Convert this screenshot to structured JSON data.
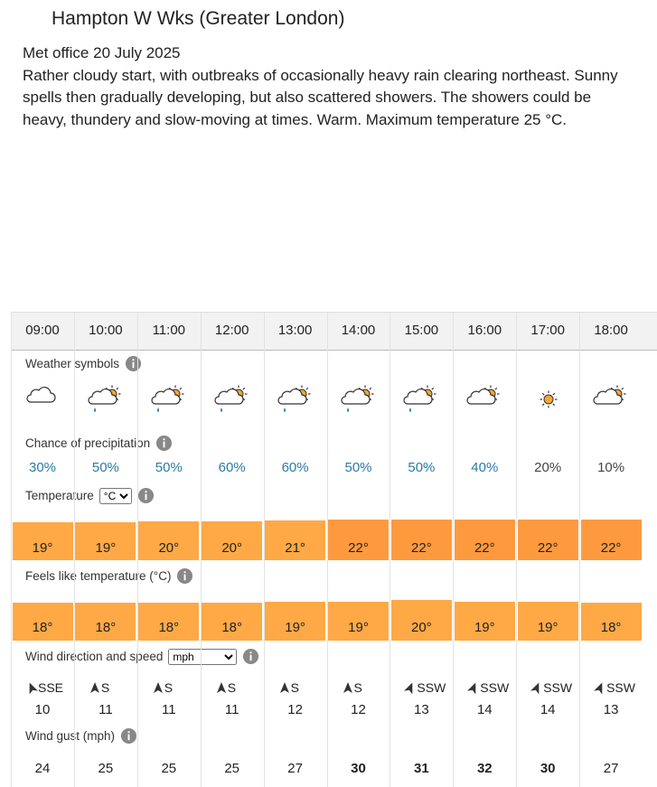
{
  "header": {
    "title": "Hampton W Wks (Greater London)"
  },
  "summary": {
    "source": "Met office 20 July 2025",
    "text": "Rather cloudy start, with outbreaks of occasionally heavy rain clearing northeast. Sunny spells then gradually developing, but also scattered showers. The showers could be heavy, thundery and slow-moving at times. Warm. Maximum temperature 25 °C."
  },
  "table": {
    "times": [
      "09:00",
      "10:00",
      "11:00",
      "12:00",
      "13:00",
      "14:00",
      "15:00",
      "16:00",
      "17:00",
      "18:00"
    ],
    "symbols_label": "Weather symbols",
    "precip_label": "Chance of precipitation",
    "precip": [
      {
        "value": 30,
        "label": "30%"
      },
      {
        "value": 50,
        "label": "50%"
      },
      {
        "value": 50,
        "label": "50%"
      },
      {
        "value": 60,
        "label": "60%"
      },
      {
        "value": 60,
        "label": "60%"
      },
      {
        "value": 50,
        "label": "50%"
      },
      {
        "value": 50,
        "label": "50%"
      },
      {
        "value": 40,
        "label": "40%"
      },
      {
        "value": 20,
        "label": "20%"
      },
      {
        "value": 10,
        "label": "10%"
      }
    ],
    "temp_label": "Temperature",
    "temp_unit": "°C",
    "temp": [
      {
        "value": 19,
        "label": "19°"
      },
      {
        "value": 19,
        "label": "19°"
      },
      {
        "value": 20,
        "label": "20°"
      },
      {
        "value": 20,
        "label": "20°"
      },
      {
        "value": 21,
        "label": "21°"
      },
      {
        "value": 22,
        "label": "22°"
      },
      {
        "value": 22,
        "label": "22°"
      },
      {
        "value": 22,
        "label": "22°"
      },
      {
        "value": 22,
        "label": "22°"
      },
      {
        "value": 22,
        "label": "22°"
      }
    ],
    "feels_label": "Feels like temperature (°C)",
    "feels": [
      {
        "value": 18,
        "label": "18°"
      },
      {
        "value": 18,
        "label": "18°"
      },
      {
        "value": 18,
        "label": "18°"
      },
      {
        "value": 18,
        "label": "18°"
      },
      {
        "value": 19,
        "label": "19°"
      },
      {
        "value": 19,
        "label": "19°"
      },
      {
        "value": 20,
        "label": "20°"
      },
      {
        "value": 19,
        "label": "19°"
      },
      {
        "value": 19,
        "label": "19°"
      },
      {
        "value": 18,
        "label": "18°"
      }
    ],
    "wind_label": "Wind direction and speed",
    "wind_unit": "mph",
    "wind_dir": [
      "SSE",
      "S",
      "S",
      "S",
      "S",
      "S",
      "SSW",
      "SSW",
      "SSW",
      "SSW"
    ],
    "wind_speed": [
      10,
      11,
      11,
      11,
      12,
      12,
      13,
      14,
      14,
      13
    ],
    "gust_label": "Wind gust (mph)",
    "gust": [
      24,
      25,
      25,
      25,
      27,
      30,
      31,
      32,
      30,
      27
    ]
  }
}
